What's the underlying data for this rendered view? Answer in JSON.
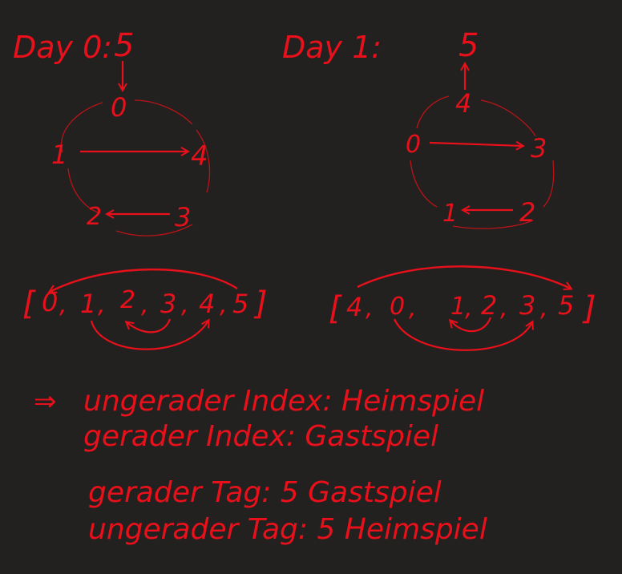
{
  "colors": {
    "background": "#222120",
    "ink": "#e8101a",
    "ink_light": "#b81418"
  },
  "day0": {
    "label": "Day 0:",
    "top": "5",
    "circle": [
      "0",
      "1",
      "4",
      "2",
      "3"
    ],
    "array": {
      "open": "[",
      "items": [
        "0",
        "1",
        "2",
        "3",
        "4",
        "5"
      ],
      "close": "]"
    }
  },
  "day1": {
    "label": "Day 1:",
    "top": "5",
    "circle": [
      "4",
      "0",
      "3",
      "1",
      "2"
    ],
    "array": {
      "open": "[",
      "items": [
        "4",
        "0",
        "1",
        "2",
        "3",
        "5"
      ],
      "close": "]"
    }
  },
  "notes": {
    "implies": "⇒",
    "line1": "ungerader Index: Heimspiel",
    "line2": "gerader Index: Gastspiel",
    "line3": "gerader Tag: 5 Gastspiel",
    "line4": "ungerader Tag: 5 Heimspiel"
  }
}
